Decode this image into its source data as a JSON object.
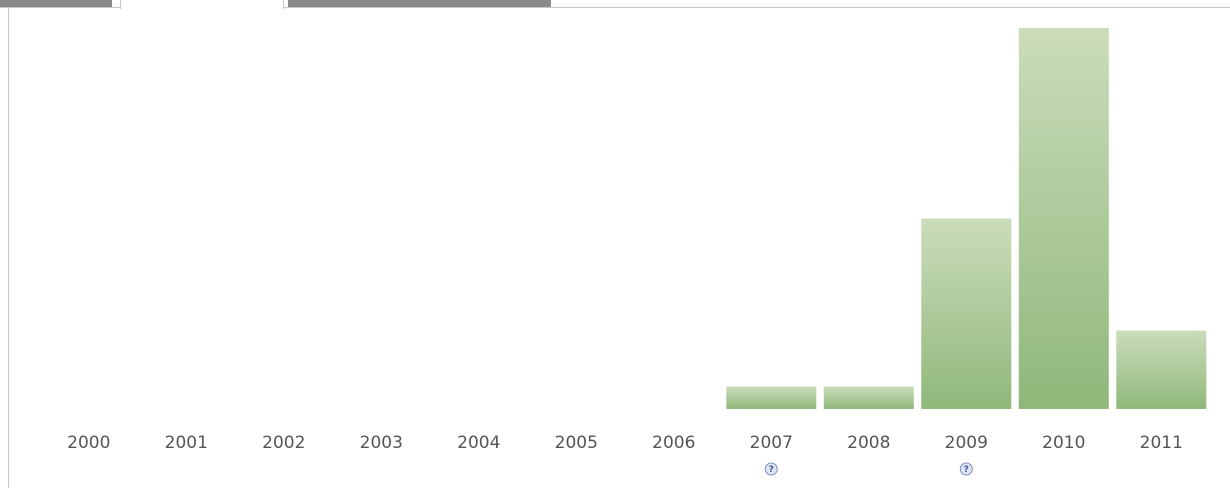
{
  "tabs": [
    {
      "label": "",
      "state": "inactive"
    },
    {
      "label": "",
      "state": "active"
    },
    {
      "label": "",
      "state": "inactive"
    }
  ],
  "help_icon_glyph": "?",
  "chart_data": {
    "type": "bar",
    "categories": [
      "2000",
      "2001",
      "2002",
      "2003",
      "2004",
      "2005",
      "2006",
      "2007",
      "2008",
      "2009",
      "2010",
      "2011"
    ],
    "values": [
      0,
      0,
      0,
      0,
      0,
      0,
      0,
      1,
      1,
      8.5,
      17,
      3.5
    ],
    "ylim": [
      0,
      17
    ],
    "help_icon_categories": [
      "2007",
      "2009"
    ],
    "title": "",
    "xlabel": "",
    "ylabel": "",
    "grid": false,
    "legend": "none",
    "colors": {
      "bar_top": "#cbdcbb",
      "bar_bottom": "#8fb87a"
    }
  }
}
